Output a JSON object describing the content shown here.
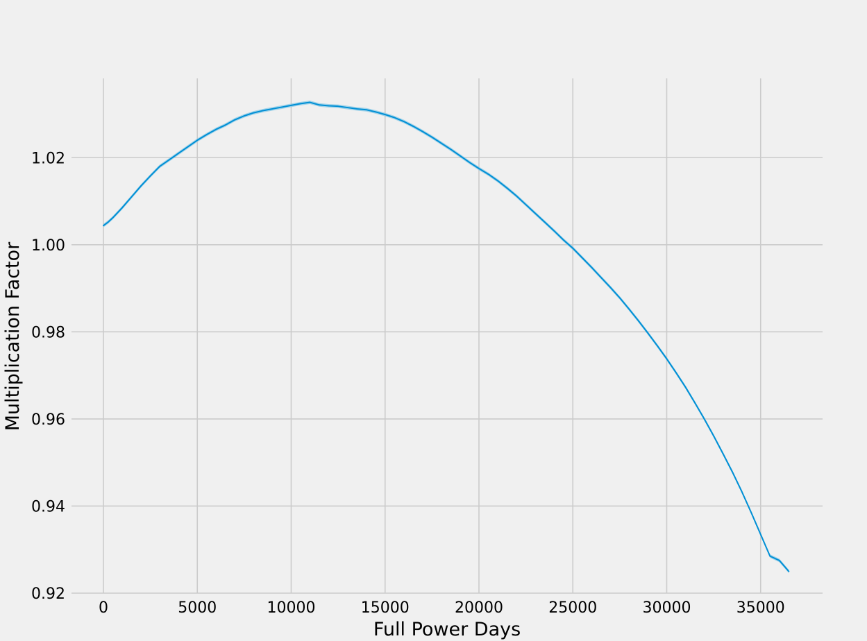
{
  "chart_data": {
    "type": "line",
    "title": "",
    "xlabel": "Full Power Days",
    "ylabel": "Multiplication Factor",
    "xlim": [
      -1700,
      38300
    ],
    "ylim": [
      0.92,
      1.0382
    ],
    "xticks": [
      0,
      5000,
      10000,
      15000,
      20000,
      25000,
      30000,
      35000
    ],
    "xtick_labels": [
      "0",
      "5000",
      "10000",
      "15000",
      "20000",
      "25000",
      "30000",
      "35000"
    ],
    "yticks": [
      0.92,
      0.94,
      0.96,
      0.98,
      1.0,
      1.02
    ],
    "ytick_labels": [
      "0.92",
      "0.94",
      "0.96",
      "0.98",
      "1.00",
      "1.02"
    ],
    "grid": true,
    "legend": "none",
    "background_color": "#f0f0f0",
    "grid_color": "#cbcbcb",
    "series": [
      {
        "color": "#008fd5",
        "band_color": "#7fc6e6",
        "band_halfwidth": 0.0004,
        "x": [
          0,
          250,
          500,
          1000,
          1500,
          2000,
          2500,
          3000,
          3500,
          4000,
          4500,
          5000,
          5500,
          6000,
          6500,
          7000,
          7500,
          8000,
          8500,
          9000,
          9500,
          10000,
          10500,
          11000,
          11500,
          12000,
          12500,
          13000,
          13500,
          14000,
          14500,
          15000,
          15500,
          16000,
          16500,
          17000,
          17500,
          18000,
          18500,
          19000,
          19500,
          20000,
          20500,
          21000,
          21500,
          22000,
          22500,
          23000,
          23500,
          24000,
          24500,
          25000,
          25500,
          26000,
          26500,
          27000,
          27500,
          28000,
          28500,
          29000,
          29500,
          30000,
          30500,
          31000,
          31500,
          32000,
          32500,
          33000,
          33500,
          34000,
          34500,
          35000,
          35500,
          36000,
          36500
        ],
        "y": [
          1.0044,
          1.0052,
          1.0062,
          1.0085,
          1.011,
          1.0135,
          1.0158,
          1.018,
          1.0195,
          1.021,
          1.0225,
          1.024,
          1.0253,
          1.0265,
          1.0275,
          1.0287,
          1.0296,
          1.0303,
          1.0308,
          1.0312,
          1.0316,
          1.032,
          1.0324,
          1.0327,
          1.0321,
          1.0319,
          1.0318,
          1.0315,
          1.0312,
          1.031,
          1.0305,
          1.0299,
          1.0292,
          1.0283,
          1.0272,
          1.026,
          1.0247,
          1.0233,
          1.0219,
          1.0204,
          1.0189,
          1.0175,
          1.0162,
          1.0147,
          1.013,
          1.0112,
          1.0092,
          1.0072,
          1.0052,
          1.0032,
          1.0011,
          0.9992,
          0.997,
          0.9948,
          0.9925,
          0.9902,
          0.9878,
          0.9852,
          0.9825,
          0.9797,
          0.9768,
          0.9738,
          0.9706,
          0.9673,
          0.9637,
          0.96,
          0.9561,
          0.952,
          0.9478,
          0.9433,
          0.9385,
          0.9335,
          0.9285,
          0.9275,
          0.925
        ]
      }
    ]
  }
}
